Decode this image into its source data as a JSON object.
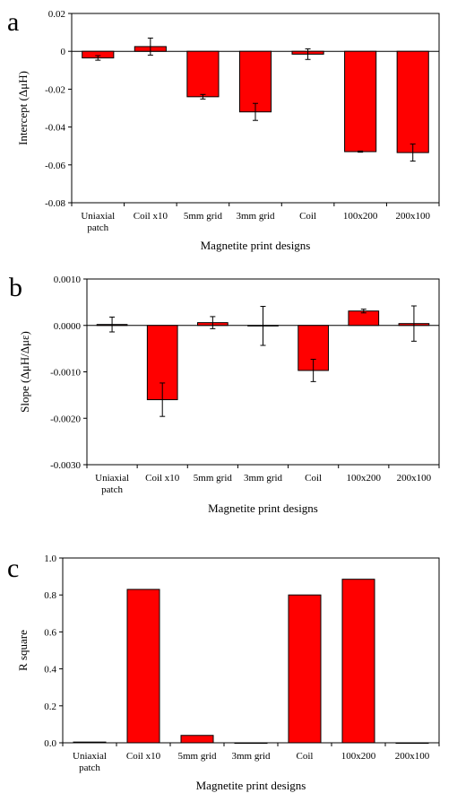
{
  "chart_data": [
    {
      "panel_label": "a",
      "type": "bar",
      "categories": [
        [
          "Uniaxial",
          "patch"
        ],
        [
          "Coil x10"
        ],
        [
          "5mm grid"
        ],
        [
          "3mm grid"
        ],
        [
          "Coil"
        ],
        [
          "100x200"
        ],
        [
          "200x100"
        ]
      ],
      "values": [
        -0.0035,
        0.0025,
        -0.024,
        -0.032,
        -0.0015,
        -0.053,
        -0.0535
      ],
      "errors": [
        0.0012,
        0.0045,
        0.0012,
        0.0045,
        0.0028,
        0.0003,
        0.0045
      ],
      "xlabel": "Magnetite print designs",
      "ylabel": "Intercept (ΔμH)",
      "ylim": [
        -0.08,
        0.02
      ],
      "yticks": [
        0.02,
        0,
        -0.02,
        -0.04,
        -0.06,
        -0.08
      ],
      "ytick_labels": [
        "0.02",
        "0",
        "-0.02",
        "-0.04",
        "-0.06",
        "-0.08"
      ],
      "bar_color": "#ff0000",
      "zero_line": true,
      "grid": false
    },
    {
      "panel_label": "b",
      "type": "bar",
      "categories": [
        [
          "Uniaxial",
          "patch"
        ],
        [
          "Coil x10"
        ],
        [
          "5mm grid"
        ],
        [
          "3mm grid"
        ],
        [
          "Coil"
        ],
        [
          "100x200"
        ],
        [
          "200x100"
        ]
      ],
      "values": [
        2e-05,
        -0.0016,
        6e-05,
        -1e-05,
        -0.00097,
        0.00031,
        4e-05
      ],
      "errors": [
        0.00016,
        0.00036,
        0.00013,
        0.00042,
        0.00024,
        4e-05,
        0.00038
      ],
      "xlabel": "Magnetite print designs",
      "ylabel": "Slope (ΔμH/Δμε)",
      "ylim": [
        -0.003,
        0.001
      ],
      "yticks": [
        0.001,
        0,
        -0.001,
        -0.002,
        -0.003
      ],
      "ytick_labels": [
        "0.0010",
        "0.0000",
        "-0.0010",
        "-0.0020",
        "-0.0030"
      ],
      "bar_color": "#ff0000",
      "zero_line": true,
      "grid": false
    },
    {
      "panel_label": "c",
      "type": "bar",
      "categories": [
        [
          "Uniaxial",
          "patch"
        ],
        [
          "Coil x10"
        ],
        [
          "5mm grid"
        ],
        [
          "3mm grid"
        ],
        [
          "Coil"
        ],
        [
          "100x200"
        ],
        [
          "200x100"
        ]
      ],
      "values": [
        0.004,
        0.83,
        0.04,
        0.0,
        0.8,
        0.885,
        0.0
      ],
      "xlabel": "Magnetite print designs",
      "ylabel": "R square",
      "ylim": [
        0,
        1.0
      ],
      "yticks": [
        1.0,
        0.8,
        0.6,
        0.4,
        0.2,
        0.0
      ],
      "ytick_labels": [
        "1.0",
        "0.8",
        "0.6",
        "0.4",
        "0.2",
        "0.0"
      ],
      "bar_color": "#ff0000",
      "zero_line": false,
      "grid": false
    }
  ]
}
